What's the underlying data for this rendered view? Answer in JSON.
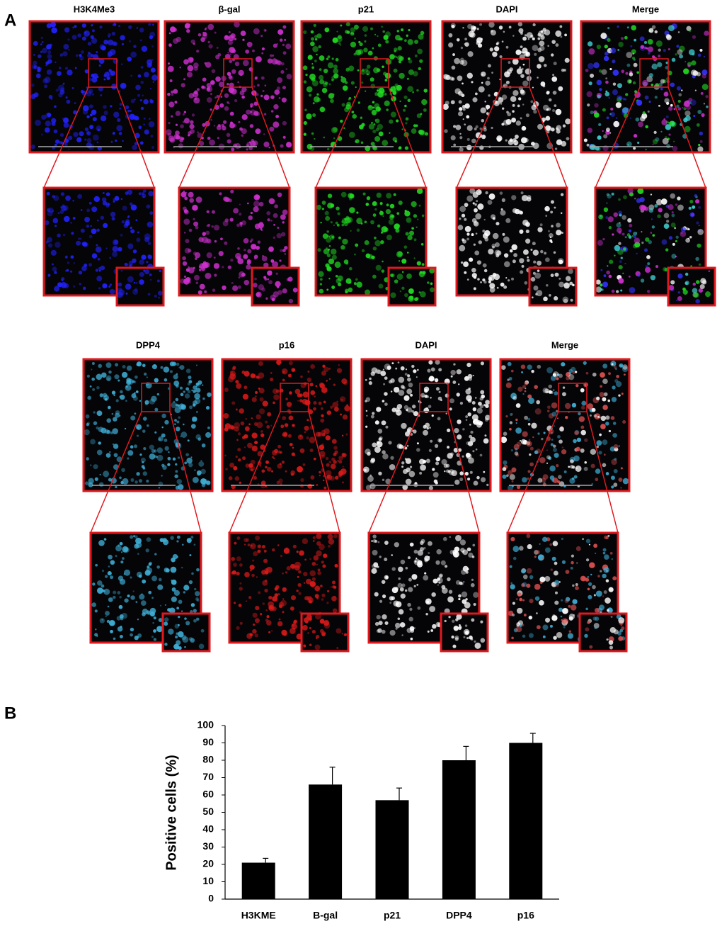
{
  "panel_a": {
    "label": "A",
    "row1": [
      "H3K4Me3",
      "β-gal",
      "p21",
      "DAPI",
      "Merge"
    ],
    "row2": [
      "DPP4",
      "p16",
      "DAPI",
      "Merge"
    ]
  },
  "panel_b": {
    "label": "B"
  },
  "chart_data": {
    "type": "bar",
    "y_label": "Positive cells (%)",
    "categories": [
      "H3KME",
      "B-gal",
      "p21",
      "DPP4",
      "p16"
    ],
    "values": [
      21,
      66,
      57,
      80,
      90
    ],
    "errors": [
      2.5,
      10,
      7,
      8,
      5.5
    ],
    "color": "#000000",
    "ylim": [
      0,
      100
    ],
    "yticks": [
      0,
      10,
      20,
      30,
      40,
      50,
      60,
      70,
      80,
      90,
      100
    ]
  }
}
